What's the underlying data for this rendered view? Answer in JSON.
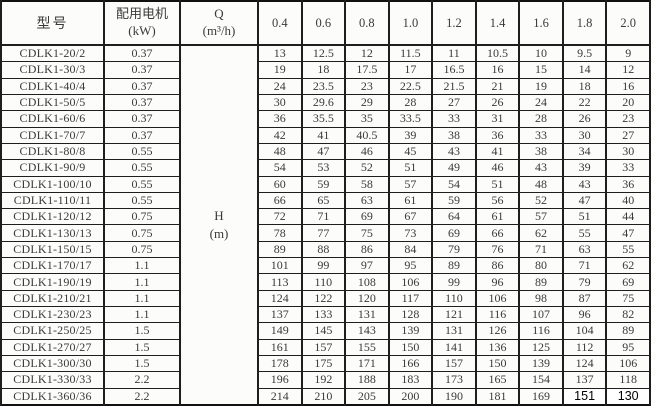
{
  "table": {
    "headers": {
      "model": "型号",
      "motor_line1": "配用电机",
      "motor_line2": "(kW)",
      "q_line1": "Q",
      "q_line2": "(m³/h)",
      "h_line1": "H",
      "h_line2": "(m)",
      "flows": [
        "0.4",
        "0.6",
        "0.8",
        "1.0",
        "1.2",
        "1.4",
        "1.6",
        "1.8",
        "2.0"
      ]
    },
    "colors": {
      "border": "#1e1e1e",
      "text": "#3a3a3a",
      "background": "#fcfcfb",
      "edited_bg": "#ffffff",
      "edited_text": "#000000"
    },
    "rows": [
      {
        "model": "CDLK1-20/2",
        "kw": "0.37",
        "h": [
          "13",
          "12.5",
          "12",
          "11.5",
          "11",
          "10.5",
          "10",
          "9.5",
          "9"
        ]
      },
      {
        "model": "CDLK1-30/3",
        "kw": "0.37",
        "h": [
          "19",
          "18",
          "17.5",
          "17",
          "16.5",
          "16",
          "15",
          "14",
          "12"
        ]
      },
      {
        "model": "CDLK1-40/4",
        "kw": "0.37",
        "h": [
          "24",
          "23.5",
          "23",
          "22.5",
          "21.5",
          "21",
          "19",
          "18",
          "16"
        ]
      },
      {
        "model": "CDLK1-50/5",
        "kw": "0.37",
        "h": [
          "30",
          "29.6",
          "29",
          "28",
          "27",
          "26",
          "24",
          "22",
          "20"
        ]
      },
      {
        "model": "CDLK1-60/6",
        "kw": "0.37",
        "h": [
          "36",
          "35.5",
          "35",
          "33.5",
          "33",
          "31",
          "28",
          "26",
          "23"
        ]
      },
      {
        "model": "CDLK1-70/7",
        "kw": "0.37",
        "h": [
          "42",
          "41",
          "40.5",
          "39",
          "38",
          "36",
          "33",
          "30",
          "27"
        ]
      },
      {
        "model": "CDLK1-80/8",
        "kw": "0.55",
        "h": [
          "48",
          "47",
          "46",
          "45",
          "43",
          "41",
          "38",
          "34",
          "30"
        ]
      },
      {
        "model": "CDLK1-90/9",
        "kw": "0.55",
        "h": [
          "54",
          "53",
          "52",
          "51",
          "49",
          "46",
          "43",
          "39",
          "33"
        ]
      },
      {
        "model": "CDLK1-100/10",
        "kw": "0.55",
        "h": [
          "60",
          "59",
          "58",
          "57",
          "54",
          "51",
          "48",
          "43",
          "36"
        ]
      },
      {
        "model": "CDLK1-110/11",
        "kw": "0.55",
        "h": [
          "66",
          "65",
          "63",
          "61",
          "59",
          "56",
          "52",
          "47",
          "40"
        ]
      },
      {
        "model": "CDLK1-120/12",
        "kw": "0.75",
        "h": [
          "72",
          "71",
          "69",
          "67",
          "64",
          "61",
          "57",
          "51",
          "44"
        ]
      },
      {
        "model": "CDLK1-130/13",
        "kw": "0.75",
        "h": [
          "78",
          "77",
          "75",
          "73",
          "69",
          "66",
          "62",
          "55",
          "47"
        ]
      },
      {
        "model": "CDLK1-150/15",
        "kw": "0.75",
        "h": [
          "89",
          "88",
          "86",
          "84",
          "79",
          "76",
          "71",
          "63",
          "55"
        ]
      },
      {
        "model": "CDLK1-170/17",
        "kw": "1.1",
        "h": [
          "101",
          "99",
          "97",
          "95",
          "89",
          "86",
          "80",
          "71",
          "62"
        ]
      },
      {
        "model": "CDLK1-190/19",
        "kw": "1.1",
        "h": [
          "113",
          "110",
          "108",
          "106",
          "99",
          "96",
          "89",
          "79",
          "69"
        ]
      },
      {
        "model": "CDLK1-210/21",
        "kw": "1.1",
        "h": [
          "124",
          "122",
          "120",
          "117",
          "110",
          "106",
          "98",
          "87",
          "75"
        ]
      },
      {
        "model": "CDLK1-230/23",
        "kw": "1.1",
        "h": [
          "137",
          "133",
          "131",
          "128",
          "121",
          "116",
          "107",
          "96",
          "82"
        ]
      },
      {
        "model": "CDLK1-250/25",
        "kw": "1.5",
        "h": [
          "149",
          "145",
          "143",
          "139",
          "131",
          "126",
          "116",
          "104",
          "89"
        ]
      },
      {
        "model": "CDLK1-270/27",
        "kw": "1.5",
        "h": [
          "161",
          "157",
          "155",
          "150",
          "141",
          "136",
          "125",
          "112",
          "95"
        ]
      },
      {
        "model": "CDLK1-300/30",
        "kw": "1.5",
        "h": [
          "178",
          "175",
          "171",
          "166",
          "157",
          "150",
          "139",
          "124",
          "106"
        ]
      },
      {
        "model": "CDLK1-330/33",
        "kw": "2.2",
        "h": [
          "196",
          "192",
          "188",
          "183",
          "173",
          "165",
          "154",
          "137",
          "118"
        ]
      },
      {
        "model": "CDLK1-360/36",
        "kw": "2.2",
        "h": [
          "214",
          "210",
          "205",
          "200",
          "190",
          "181",
          "169",
          "151",
          "130"
        ],
        "edited_cols": [
          7,
          8
        ]
      }
    ]
  }
}
